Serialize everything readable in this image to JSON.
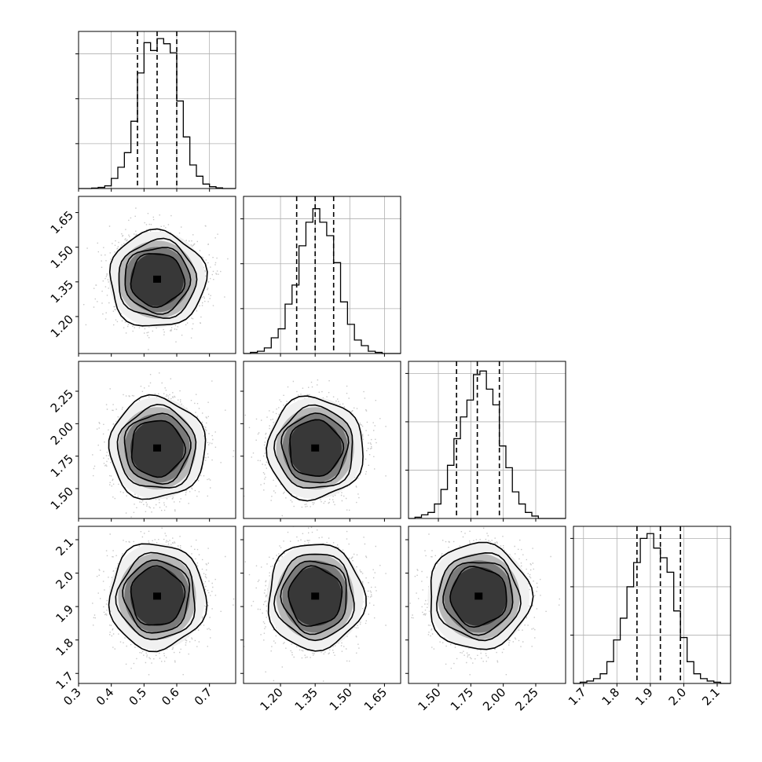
{
  "chart_data": {
    "type": "corner",
    "style": {
      "line_color": "#000000",
      "grid_color": "#b0b0b0",
      "hist2d_dark": "#000000",
      "hist2d_light": "#ffffff",
      "scatter_color": "#b4b4b4"
    },
    "grid": true,
    "parameters": [
      {
        "id": "p1",
        "range": [
          0.3,
          0.78
        ],
        "ticks": [
          "0.3",
          "0.4",
          "0.5",
          "0.6",
          "0.7"
        ],
        "tick_values": [
          0.3,
          0.4,
          0.5,
          0.6,
          0.7
        ],
        "quantiles": [
          0.48,
          0.54,
          0.6
        ],
        "hist_edges": [
          0.3,
          0.32,
          0.34,
          0.36,
          0.38,
          0.4,
          0.42,
          0.44,
          0.46,
          0.48,
          0.5,
          0.52,
          0.54,
          0.56,
          0.58,
          0.6,
          0.62,
          0.64,
          0.66,
          0.68,
          0.7,
          0.72,
          0.74,
          0.76,
          0.78
        ],
        "hist_counts": [
          0,
          0,
          0.2,
          0.5,
          1.2,
          4.5,
          9.5,
          16,
          30,
          51.5,
          65,
          61.5,
          66.8,
          64.5,
          60.5,
          39,
          23,
          10.5,
          5.5,
          2,
          0.8,
          0.3,
          0,
          0
        ],
        "hist_ymax": 70,
        "hist_yticks": [
          20,
          40,
          60
        ]
      },
      {
        "id": "p2",
        "range": [
          1.04,
          1.72
        ],
        "ticks": [
          "1.20",
          "1.35",
          "1.50",
          "1.65"
        ],
        "tick_values": [
          1.2,
          1.35,
          1.5,
          1.65
        ],
        "quantiles": [
          1.27,
          1.35,
          1.43
        ],
        "hist_edges": [
          1.04,
          1.07,
          1.1,
          1.13,
          1.16,
          1.19,
          1.22,
          1.25,
          1.28,
          1.31,
          1.34,
          1.37,
          1.4,
          1.43,
          1.46,
          1.49,
          1.52,
          1.55,
          1.58,
          1.61,
          1.64,
          1.67,
          1.7,
          1.72
        ],
        "hist_counts": [
          0,
          0.5,
          1,
          2.5,
          7,
          11,
          22,
          30.5,
          48,
          58.5,
          64.5,
          58.5,
          52.5,
          40.5,
          23,
          13,
          6,
          3.5,
          1,
          0.5,
          0,
          0,
          0
        ],
        "hist_ymax": 70,
        "hist_yticks": [
          20,
          40,
          60
        ]
      },
      {
        "id": "p3",
        "range": [
          1.27,
          2.48
        ],
        "ticks": [
          "1.50",
          "1.75",
          "2.00",
          "2.25"
        ],
        "tick_values": [
          1.5,
          1.75,
          2.0,
          2.25
        ],
        "quantiles": [
          1.64,
          1.8,
          1.97
        ],
        "hist_edges": [
          1.27,
          1.32,
          1.37,
          1.42,
          1.47,
          1.52,
          1.57,
          1.62,
          1.67,
          1.72,
          1.77,
          1.82,
          1.87,
          1.92,
          1.97,
          2.02,
          2.07,
          2.12,
          2.17,
          2.22,
          2.27,
          2.32,
          2.37,
          2.42,
          2.48
        ],
        "hist_counts": [
          0,
          0.5,
          1.5,
          2.5,
          6,
          12,
          22,
          33,
          42,
          49,
          59.5,
          61,
          53.5,
          47,
          30,
          21,
          11,
          6,
          2.5,
          1,
          0,
          0,
          0,
          0
        ],
        "hist_ymax": 65,
        "hist_yticks": [
          20,
          40,
          60
        ]
      },
      {
        "id": "p4",
        "range": [
          1.67,
          2.14
        ],
        "ticks": [
          "1.7",
          "1.8",
          "1.9",
          "2.0",
          "2.1"
        ],
        "tick_values": [
          1.7,
          1.8,
          1.9,
          2.0,
          2.1
        ],
        "quantiles": [
          1.86,
          1.93,
          1.99
        ],
        "hist_edges": [
          1.67,
          1.69,
          1.71,
          1.73,
          1.75,
          1.77,
          1.79,
          1.81,
          1.83,
          1.85,
          1.87,
          1.89,
          1.91,
          1.93,
          1.95,
          1.97,
          1.99,
          2.01,
          2.03,
          2.05,
          2.07,
          2.09,
          2.11,
          2.13,
          2.14
        ],
        "hist_counts": [
          0,
          0.5,
          1,
          2,
          4,
          9,
          18,
          27,
          40,
          50,
          60,
          62,
          56,
          52,
          46,
          30,
          19,
          9,
          4,
          2,
          1,
          0.5,
          0,
          0
        ],
        "hist_ymax": 65,
        "hist_yticks": [
          20,
          40,
          60
        ]
      }
    ],
    "pairs": [
      {
        "row": 1,
        "col": 0,
        "center": [
          0.54,
          1.36
        ],
        "sigma": [
          0.06,
          0.085
        ],
        "levels": [
          0.6,
          0.75,
          0.86,
          0.95
        ]
      },
      {
        "row": 2,
        "col": 0,
        "center": [
          0.54,
          1.81
        ],
        "sigma": [
          0.06,
          0.16
        ],
        "levels": [
          0.6,
          0.75,
          0.86,
          0.95
        ]
      },
      {
        "row": 2,
        "col": 1,
        "center": [
          1.35,
          1.81
        ],
        "sigma": [
          0.085,
          0.16
        ],
        "levels": [
          0.6,
          0.75,
          0.86,
          0.95
        ]
      },
      {
        "row": 3,
        "col": 0,
        "center": [
          0.54,
          1.93
        ],
        "sigma": [
          0.06,
          0.065
        ],
        "levels": [
          0.6,
          0.75,
          0.86,
          0.95
        ]
      },
      {
        "row": 3,
        "col": 1,
        "center": [
          1.35,
          1.93
        ],
        "sigma": [
          0.085,
          0.065
        ],
        "levels": [
          0.6,
          0.75,
          0.86,
          0.95
        ]
      },
      {
        "row": 3,
        "col": 2,
        "center": [
          1.81,
          1.93
        ],
        "sigma": [
          0.16,
          0.065
        ],
        "levels": [
          0.6,
          0.75,
          0.86,
          0.95
        ]
      }
    ]
  }
}
